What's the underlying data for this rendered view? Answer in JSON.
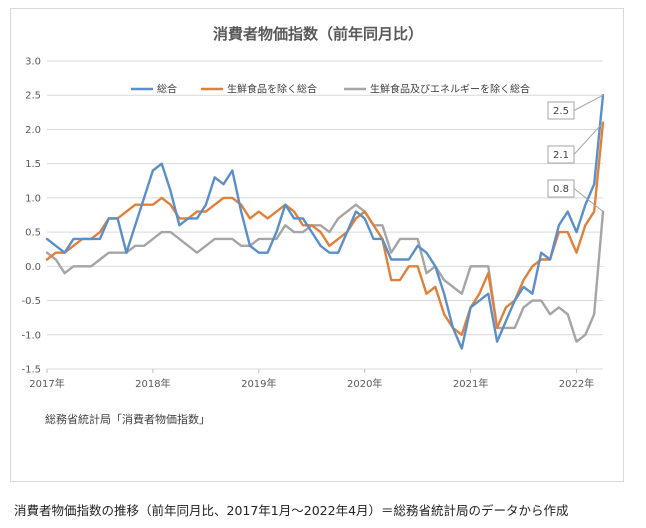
{
  "chart_data": {
    "type": "line",
    "title": "消費者物価指数（前年同月比）",
    "xlabel": "",
    "ylabel": "",
    "x_start": "2017-01",
    "x_end": "2022-04",
    "x_tick_labels": [
      "2017年",
      "2018年",
      "2019年",
      "2020年",
      "2021年",
      "2022年"
    ],
    "ylim": [
      -1.5,
      3.0
    ],
    "y_ticks": [
      -1.5,
      -1.0,
      -0.5,
      0.0,
      0.5,
      1.0,
      1.5,
      2.0,
      2.5,
      3.0
    ],
    "y_tick_labels": [
      "-1.5",
      "-1.0",
      "-0.5",
      "0.0",
      "0.5",
      "1.0",
      "1.5",
      "2.0",
      "2.5",
      "3.0"
    ],
    "grid": "horizontal",
    "legend_position": "top",
    "series": [
      {
        "name": "総合",
        "color": "#5b8fc9",
        "values": [
          0.4,
          0.3,
          0.2,
          0.4,
          0.4,
          0.4,
          0.4,
          0.7,
          0.7,
          0.2,
          0.6,
          1.0,
          1.4,
          1.5,
          1.1,
          0.6,
          0.7,
          0.7,
          0.9,
          1.3,
          1.2,
          1.4,
          0.8,
          0.3,
          0.2,
          0.2,
          0.5,
          0.9,
          0.7,
          0.7,
          0.5,
          0.3,
          0.2,
          0.2,
          0.5,
          0.8,
          0.7,
          0.4,
          0.4,
          0.1,
          0.1,
          0.1,
          0.3,
          0.2,
          0.0,
          -0.4,
          -0.9,
          -1.2,
          -0.6,
          -0.5,
          -0.4,
          -1.1,
          -0.8,
          -0.5,
          -0.3,
          -0.4,
          0.2,
          0.1,
          0.6,
          0.8,
          0.5,
          0.9,
          1.2,
          2.5
        ]
      },
      {
        "name": "生鮮食品を除く総合",
        "color": "#e0803a",
        "values": [
          0.1,
          0.2,
          0.2,
          0.3,
          0.4,
          0.4,
          0.5,
          0.7,
          0.7,
          0.8,
          0.9,
          0.9,
          0.9,
          1.0,
          0.9,
          0.7,
          0.7,
          0.8,
          0.8,
          0.9,
          1.0,
          1.0,
          0.9,
          0.7,
          0.8,
          0.7,
          0.8,
          0.9,
          0.8,
          0.6,
          0.6,
          0.5,
          0.3,
          0.4,
          0.5,
          0.7,
          0.8,
          0.6,
          0.4,
          -0.2,
          -0.2,
          0.0,
          0.0,
          -0.4,
          -0.3,
          -0.7,
          -0.9,
          -1.0,
          -0.6,
          -0.4,
          -0.1,
          -0.9,
          -0.6,
          -0.5,
          -0.2,
          0.0,
          0.1,
          0.1,
          0.5,
          0.5,
          0.2,
          0.6,
          0.8,
          2.1
        ]
      },
      {
        "name": "生鮮食品及びエネルギーを除く総合",
        "color": "#a5a5a5",
        "values": [
          0.2,
          0.1,
          -0.1,
          0.0,
          0.0,
          0.0,
          0.1,
          0.2,
          0.2,
          0.2,
          0.3,
          0.3,
          0.4,
          0.5,
          0.5,
          0.4,
          0.3,
          0.2,
          0.3,
          0.4,
          0.4,
          0.4,
          0.3,
          0.3,
          0.4,
          0.4,
          0.4,
          0.6,
          0.5,
          0.5,
          0.6,
          0.6,
          0.5,
          0.7,
          0.8,
          0.9,
          0.8,
          0.6,
          0.6,
          0.2,
          0.4,
          0.4,
          0.4,
          -0.1,
          0.0,
          -0.2,
          -0.3,
          -0.4,
          0.0,
          0.0,
          0.0,
          -0.9,
          -0.9,
          -0.9,
          -0.6,
          -0.5,
          -0.5,
          -0.7,
          -0.6,
          -0.7,
          -1.1,
          -1.0,
          -0.7,
          0.8
        ]
      }
    ],
    "callouts": [
      "2.5",
      "2.1",
      "0.8"
    ],
    "source_note": "総務省統計局「消費者物価指数」"
  },
  "caption": "消費者物価指数の推移（前年同月比、2017年1月～2022年4月）＝総務省統計局のデータから作成"
}
